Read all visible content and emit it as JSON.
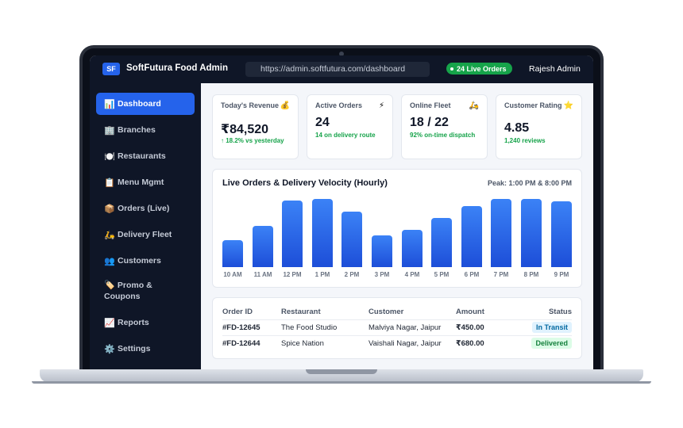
{
  "app": {
    "logo": "SF",
    "title": "SoftFutura Food Admin",
    "url": "https://admin.softfutura.com/dashboard",
    "live_orders": "24 Live Orders",
    "user": "Rajesh Admin"
  },
  "sidebar": {
    "items": [
      {
        "icon": "📊",
        "icon_name": "bar-chart-icon",
        "label": "Dashboard",
        "active": true
      },
      {
        "icon": "🏢",
        "icon_name": "building-icon",
        "label": "Branches"
      },
      {
        "icon": "🍽️",
        "icon_name": "plate-icon",
        "label": "Restaurants"
      },
      {
        "icon": "📋",
        "icon_name": "clipboard-icon",
        "label": "Menu Mgmt"
      },
      {
        "icon": "📦",
        "icon_name": "package-icon",
        "label": "Orders (Live)"
      },
      {
        "icon": "🛵",
        "icon_name": "scooter-icon",
        "label": "Delivery Fleet"
      },
      {
        "icon": "👥",
        "icon_name": "users-icon",
        "label": "Customers"
      },
      {
        "icon": "🏷️",
        "icon_name": "tag-icon",
        "label": "Promo & Coupons"
      },
      {
        "icon": "📈",
        "icon_name": "trend-chart-icon",
        "label": "Reports"
      },
      {
        "icon": "⚙️",
        "icon_name": "gear-icon",
        "label": "Settings"
      }
    ]
  },
  "stats": [
    {
      "title": "Today's Revenue",
      "icon": "💰",
      "icon_name": "money-bag-icon",
      "value": "₹84,520",
      "sub": "↑ 18.2% vs yesterday"
    },
    {
      "title": "Active Orders",
      "icon": "⚡",
      "icon_name": "lightning-icon",
      "value": "24",
      "sub": "14 on delivery route"
    },
    {
      "title": "Online Fleet",
      "icon": "🛵",
      "icon_name": "scooter-icon",
      "value": "18 / 22",
      "sub": "92% on-time dispatch"
    },
    {
      "title": "Customer Rating",
      "icon": "⭐",
      "icon_name": "star-icon",
      "value": "4.85",
      "sub": "1,240 reviews"
    }
  ],
  "chart": {
    "title": "Live Orders & Delivery Velocity (Hourly)",
    "peak": "Peak: 1:00 PM & 8:00 PM"
  },
  "chart_data": {
    "type": "bar",
    "title": "Live Orders & Delivery Velocity (Hourly)",
    "categories": [
      "10 AM",
      "11 AM",
      "12 PM",
      "1 PM",
      "2 PM",
      "3 PM",
      "4 PM",
      "5 PM",
      "6 PM",
      "7 PM",
      "8 PM",
      "9 PM"
    ],
    "values": [
      40,
      60,
      98,
      100,
      81,
      46,
      55,
      72,
      90,
      100,
      100,
      97
    ],
    "ylim": [
      0,
      100
    ],
    "grid": false,
    "legend": "none",
    "bar_color": "#2563eb"
  },
  "orders": {
    "headers": [
      "Order ID",
      "Restaurant",
      "Customer",
      "Amount",
      "Status"
    ],
    "rows": [
      {
        "id": "#FD-12645",
        "restaurant": "The Food Studio",
        "customer": "Malviya Nagar, Jaipur",
        "amount": "₹450.00",
        "status": "In Transit",
        "status_color": "#0369a1",
        "status_bg": "#e0f2fe"
      },
      {
        "id": "#FD-12644",
        "restaurant": "Spice Nation",
        "customer": "Vaishali Nagar, Jaipur",
        "amount": "₹680.00",
        "status": "Delivered",
        "status_color": "#15803d",
        "status_bg": "#dcfce7"
      }
    ]
  },
  "colors": {
    "accent": "#2563eb",
    "sidebar_bg": "#0f1627",
    "success": "#16a34a"
  }
}
